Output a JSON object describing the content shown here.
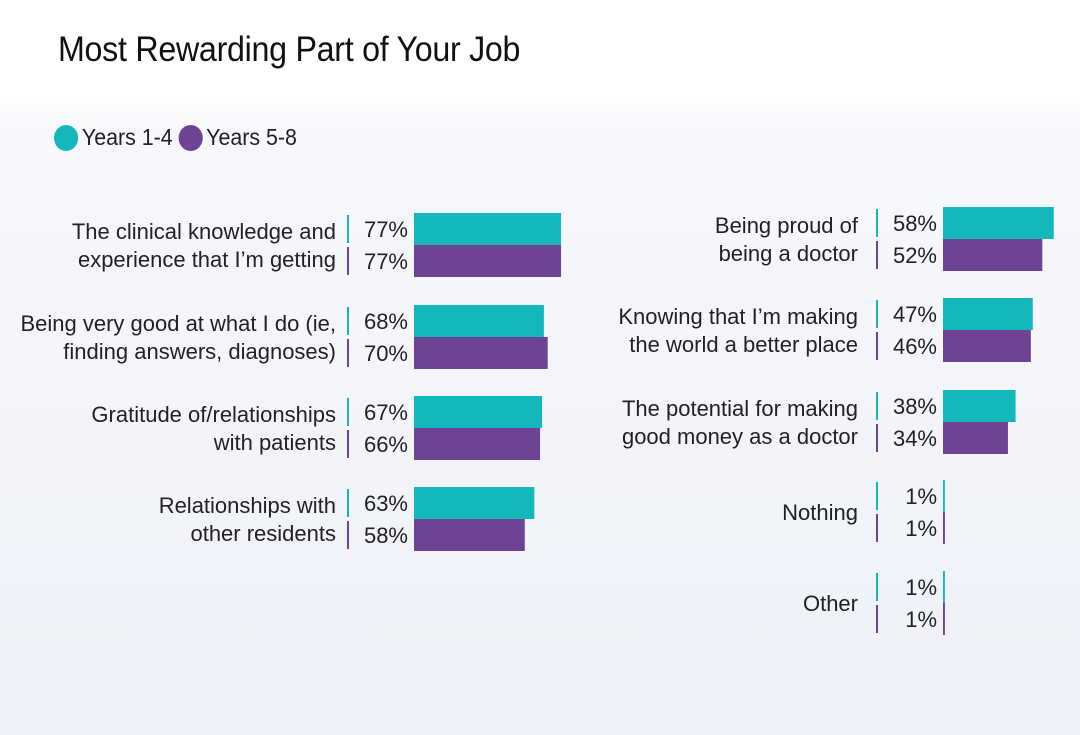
{
  "colors": {
    "series1": "#14B8BA",
    "series2": "#6E4393"
  },
  "chart_data": {
    "type": "bar",
    "title": "Most Rewarding Part of Your Job",
    "legend": {
      "placement": "top-left"
    },
    "value_suffix": "%",
    "series": [
      {
        "name": "Years 1-4",
        "color": "#14B8BA"
      },
      {
        "name": "Years 5-8",
        "color": "#6E4393"
      }
    ],
    "groups": [
      {
        "lines": [
          "The clinical knowledge and",
          "experience that I’m getting"
        ],
        "values": [
          77,
          77
        ]
      },
      {
        "lines": [
          "Being very good at what I do (ie,",
          "finding answers, diagnoses)"
        ],
        "values": [
          68,
          70
        ]
      },
      {
        "lines": [
          "Gratitude of/relationships",
          "with patients"
        ],
        "values": [
          67,
          66
        ]
      },
      {
        "lines": [
          "Relationships with",
          "other residents"
        ],
        "values": [
          63,
          58
        ]
      },
      {
        "lines": [
          "Being proud of",
          "being a doctor"
        ],
        "values": [
          58,
          52
        ]
      },
      {
        "lines": [
          "Knowing that I’m making",
          "the world a better place"
        ],
        "values": [
          47,
          46
        ]
      },
      {
        "lines": [
          "The potential for making",
          "good money as a doctor"
        ],
        "values": [
          38,
          34
        ]
      },
      {
        "lines": [
          "Nothing"
        ],
        "values": [
          1,
          1
        ]
      },
      {
        "lines": [
          "Other"
        ],
        "values": [
          1,
          1
        ]
      }
    ]
  }
}
